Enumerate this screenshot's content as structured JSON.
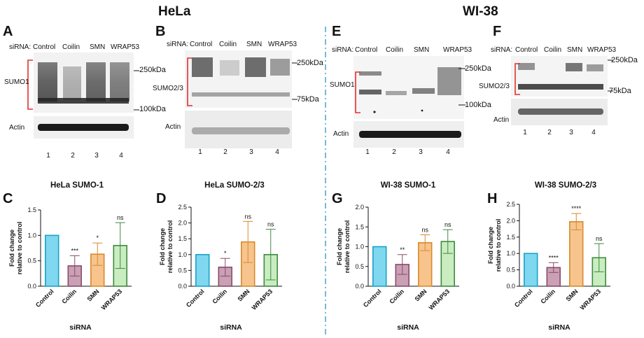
{
  "titles": {
    "left": "HeLa",
    "right": "WI-38"
  },
  "blots": {
    "A": {
      "letter": "A",
      "sirna_label": "siRNA:",
      "lanes": [
        "Control",
        "Coilin",
        "SMN",
        "WRAP53"
      ],
      "band_label": "SUMO1",
      "loading_label": "Actin",
      "markers": [
        "250kDa",
        "100kDa"
      ],
      "lane_numbers": [
        "1",
        "2",
        "3",
        "4"
      ]
    },
    "B": {
      "letter": "B",
      "sirna_label": "siRNA:",
      "lanes": [
        "Control",
        "Coilin",
        "SMN",
        "WRAP53"
      ],
      "band_label": "SUMO2/3",
      "loading_label": "Actin",
      "markers": [
        "250kDa",
        "75kDa"
      ],
      "lane_numbers": [
        "1",
        "2",
        "3",
        "4"
      ]
    },
    "E": {
      "letter": "E",
      "sirna_label": "siRNA:",
      "lanes": [
        "Control",
        "Coilin",
        "SMN",
        "WRAP53"
      ],
      "band_label": "SUMO1",
      "loading_label": "Actin",
      "markers": [
        "250kDa",
        "100kDa"
      ],
      "lane_numbers": [
        "1",
        "2",
        "3",
        "4"
      ]
    },
    "F": {
      "letter": "F",
      "sirna_label": "siRNA:",
      "lanes": [
        "Control",
        "Coilin",
        "SMN",
        "WRAP53"
      ],
      "band_label": "SUMO2/3",
      "loading_label": "Actin",
      "markers": [
        "250kDa",
        "75kDa"
      ],
      "lane_numbers": [
        "1",
        "2",
        "3",
        "4"
      ]
    }
  },
  "colors": {
    "control": "#7fd8f0",
    "coilin": "#c9a0b4",
    "smn": "#f7c48d",
    "wrap53": "#c9edc0",
    "control_edge": "#1aa3c8",
    "coilin_edge": "#8a4a6c",
    "smn_edge": "#d98a2b",
    "wrap53_edge": "#3f8a3f",
    "error": "#333333",
    "dashed_divider": "#4aa3c8"
  },
  "chart_data": [
    {
      "letter": "C",
      "type": "bar",
      "title": "HeLa SUMO-1",
      "xlabel": "siRNA",
      "ylabel": "Fold change\nrelative to control",
      "categories": [
        "Control",
        "Coilin",
        "SMN",
        "WRAP53"
      ],
      "values": [
        1.0,
        0.4,
        0.63,
        0.8
      ],
      "errors": [
        0,
        0.2,
        0.22,
        0.45
      ],
      "significance": [
        "",
        "***",
        "*",
        "ns"
      ],
      "ylim": [
        0.0,
        1.5
      ],
      "yticks": [
        "0.0",
        "0.5",
        "1.0",
        "1.5"
      ],
      "ytick_values": [
        0.0,
        0.5,
        1.0,
        1.5
      ]
    },
    {
      "letter": "D",
      "type": "bar",
      "title": "HeLa SUMO-2/3",
      "xlabel": "siRNA",
      "ylabel": "Fold change\nrelative to control",
      "categories": [
        "Control",
        "Coilin",
        "SMN",
        "WRAP53"
      ],
      "values": [
        1.0,
        0.6,
        1.4,
        1.0
      ],
      "errors": [
        0,
        0.28,
        0.65,
        0.8
      ],
      "significance": [
        "",
        "*",
        "ns",
        "ns"
      ],
      "ylim": [
        0.0,
        2.5
      ],
      "yticks": [
        "0.0",
        "0.5",
        "1.0",
        "1.5",
        "2.0",
        "2.5"
      ],
      "ytick_values": [
        0.0,
        0.5,
        1.0,
        1.5,
        2.0,
        2.5
      ]
    },
    {
      "letter": "G",
      "type": "bar",
      "title": "WI-38 SUMO-1",
      "xlabel": "siRNA",
      "ylabel": "Fold change\nrelative to control",
      "categories": [
        "Control",
        "Coilin",
        "SMN",
        "WRAP53"
      ],
      "values": [
        1.0,
        0.55,
        1.1,
        1.13
      ],
      "errors": [
        0,
        0.25,
        0.2,
        0.3
      ],
      "significance": [
        "",
        "**",
        "ns",
        "ns"
      ],
      "ylim": [
        0.0,
        2.0
      ],
      "yticks": [
        "0.0",
        "0.5",
        "1.0",
        "1.5",
        "2.0"
      ],
      "ytick_values": [
        0.0,
        0.5,
        1.0,
        1.5,
        2.0
      ]
    },
    {
      "letter": "H",
      "type": "bar",
      "title": "WI-38 SUMO-2/3",
      "xlabel": "siRNA",
      "ylabel": "Fold change\nrelative to control",
      "categories": [
        "Control",
        "Coilin",
        "SMN",
        "WRAP53"
      ],
      "values": [
        1.0,
        0.57,
        1.97,
        0.87
      ],
      "errors": [
        0,
        0.15,
        0.25,
        0.43
      ],
      "significance": [
        "",
        "****",
        "****",
        "ns"
      ],
      "ylim": [
        0.0,
        2.5
      ],
      "yticks": [
        "0.0",
        "0.5",
        "1.0",
        "1.5",
        "2.0",
        "2.5"
      ],
      "ytick_values": [
        0.0,
        0.5,
        1.0,
        1.5,
        2.0,
        2.5
      ]
    }
  ]
}
